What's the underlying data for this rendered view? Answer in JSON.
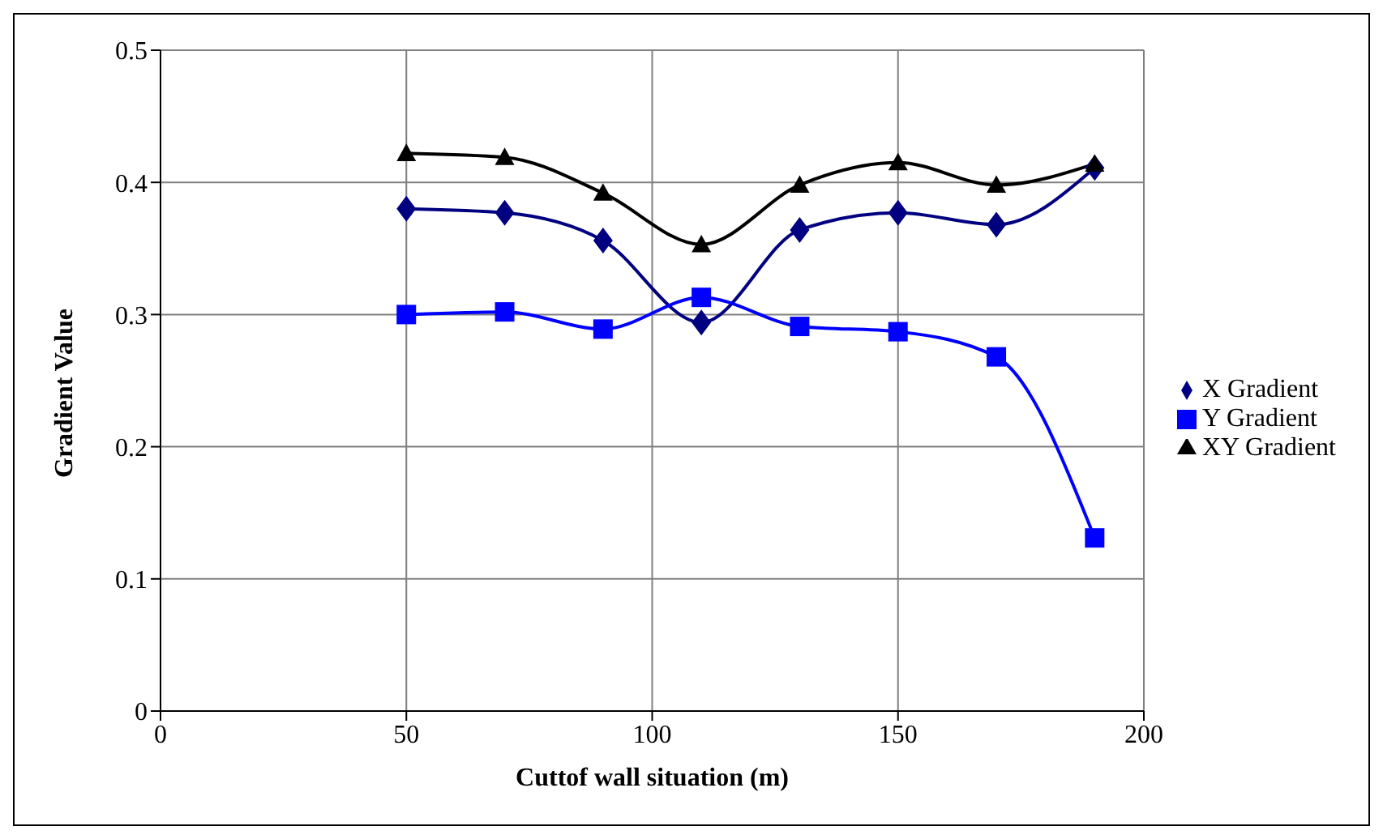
{
  "chart_data": {
    "type": "line",
    "xlabel": "Cuttof wall situation (m)",
    "ylabel": "Gradient Value",
    "x": [
      50,
      70,
      90,
      110,
      130,
      150,
      170,
      190
    ],
    "series": [
      {
        "name": "X Gradient",
        "color": "#000080",
        "marker": "diamond",
        "values": [
          0.38,
          0.377,
          0.356,
          0.294,
          0.364,
          0.377,
          0.368,
          0.411
        ]
      },
      {
        "name": "Y Gradient",
        "color": "#0000ff",
        "marker": "square",
        "values": [
          0.3,
          0.302,
          0.289,
          0.313,
          0.291,
          0.287,
          0.268,
          0.131
        ]
      },
      {
        "name": "XY Gradient",
        "color": "#000000",
        "marker": "triangle",
        "values": [
          0.422,
          0.419,
          0.392,
          0.353,
          0.398,
          0.415,
          0.398,
          0.414
        ]
      }
    ],
    "xlim": [
      0,
      200
    ],
    "xticks": [
      0,
      50,
      100,
      150,
      200
    ],
    "ylim": [
      0,
      0.5
    ],
    "yticks": [
      0,
      0.1,
      0.2,
      0.3,
      0.4,
      0.5
    ],
    "grid": true,
    "legend": "right",
    "line_style": "solid"
  }
}
